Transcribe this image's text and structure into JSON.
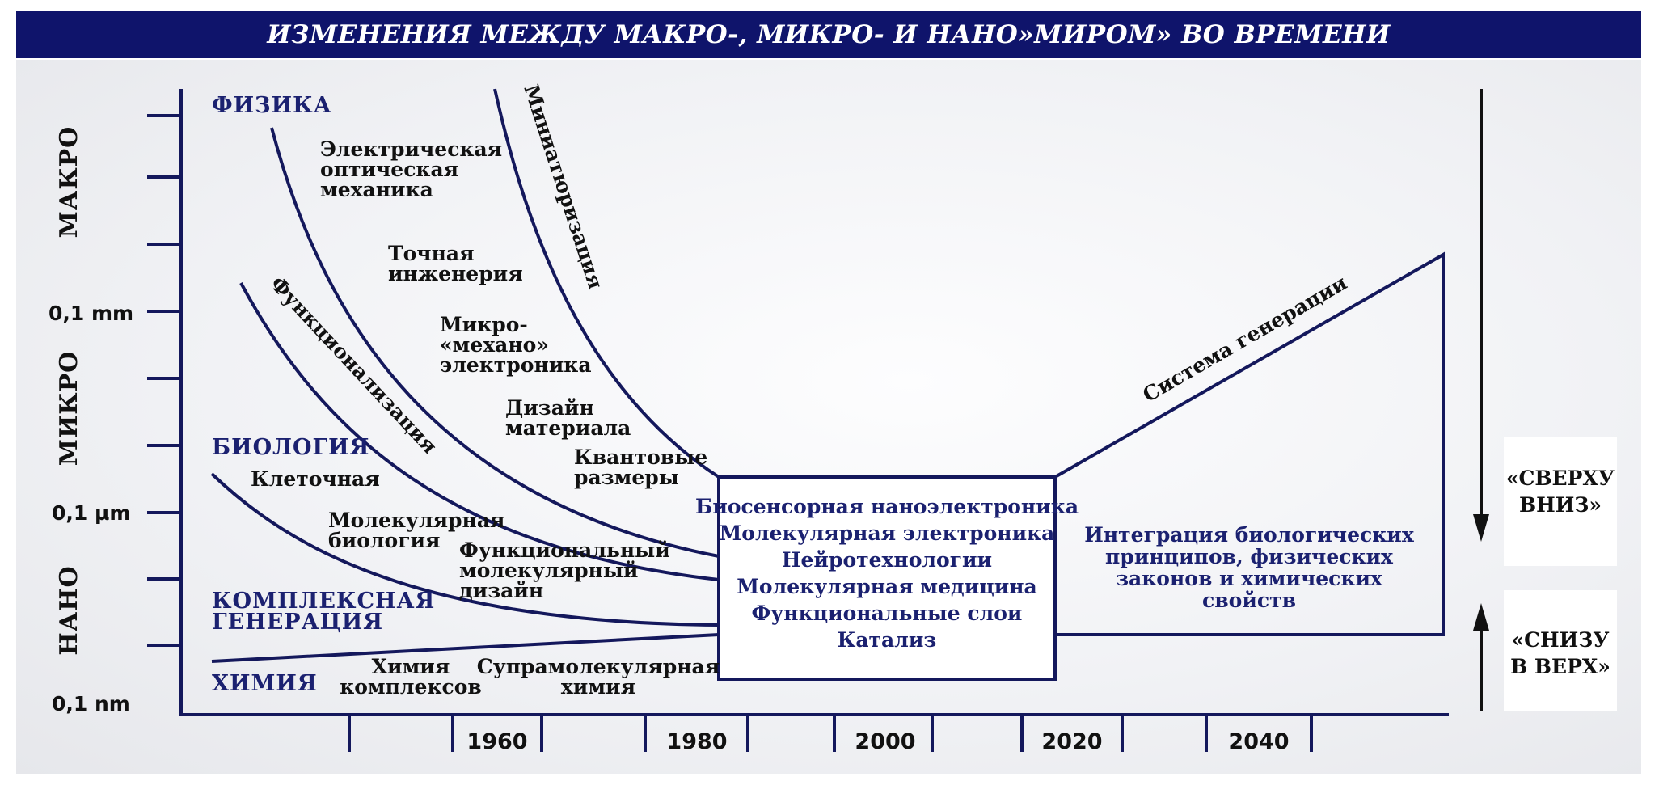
{
  "title": "ИЗМЕНЕНИЯ МЕЖДУ МАКРО-, МИКРО- И НАНО»МИРОМ» ВО ВРЕМЕНИ",
  "zones": {
    "macro": "МАКРО",
    "micro": "МИКРО",
    "nano": "НАНО"
  },
  "scale_labels": {
    "mm": "0,1 mm",
    "um": "0,1 µm",
    "nm": "0,1 nm"
  },
  "categories": {
    "physics": "ФИЗИКА",
    "biology": "БИОЛОГИЯ",
    "complex_1": "КОМПЛЕКСНАЯ",
    "complex_2": "ГЕНЕРАЦИЯ",
    "chemistry": "ХИМИЯ"
  },
  "labels": {
    "electric_1": "Электрическая",
    "electric_2": "оптическая",
    "electric_3": "механика",
    "precision_1": "Точная",
    "precision_2": "инженерия",
    "micro_1": "Микро-",
    "micro_2": "«механо»",
    "micro_3": "электроника",
    "design_1": "Дизайн",
    "design_2": "материала",
    "quantum_1": "Квантовые",
    "quantum_2": "размеры",
    "cellular": "Клеточная",
    "molbio_1": "Молекулярная",
    "molbio_2": "биология",
    "funcdesign_1": "Функциональный",
    "funcdesign_2": "молекулярный",
    "funcdesign_3": "дизайн",
    "chemcomplex_1": "Химия",
    "chemcomplex_2": "комплексов",
    "supra_1": "Супрамолекулярная",
    "supra_2": "химия"
  },
  "curve_labels": {
    "miniaturization": "Миниатюризация",
    "functionalization": "Функционализация",
    "generation_system": "Система генерации"
  },
  "center_box": [
    "Биосенсорная наноэлектроника",
    "Молекулярная электроника",
    "Нейротехнологии",
    "Молекулярная медицина",
    "Функциональные слои",
    "Катализ"
  ],
  "integration": [
    "Интеграция биологических",
    "принципов, физических",
    "законов и химических",
    "свойств"
  ],
  "directions": {
    "top_down_1": "«СВЕРХУ",
    "top_down_2": "ВНИЗ»",
    "bottom_up_1": "«СНИЗУ",
    "bottom_up_2": "В ВЕРХ»"
  },
  "years": [
    "1960",
    "1980",
    "2000",
    "2020",
    "2040"
  ],
  "colors": {
    "title_bg": "#0f146b",
    "navy": "#1b2170",
    "line": "#14185c"
  }
}
